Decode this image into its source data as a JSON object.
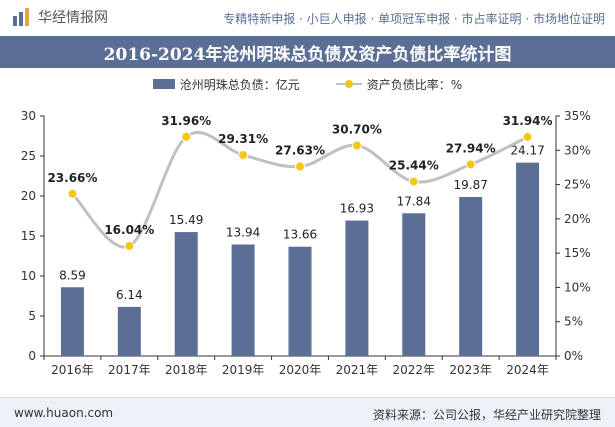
{
  "header": {
    "logo_text": "华经情报网",
    "tagline": "专精特新申报 · 小巨人申报 · 单项冠军申报 · 市占率证明 · 市场地位证明"
  },
  "footer": {
    "website": "www.huaon.com",
    "source": "资料来源：公司公报，华经产业研究院整理"
  },
  "chart_data": {
    "type": "bar+line",
    "title": "2016-2024年沧州明珠总负债及资产负债比率统计图",
    "categories": [
      "2016年",
      "2017年",
      "2018年",
      "2019年",
      "2020年",
      "2021年",
      "2022年",
      "2023年",
      "2024年"
    ],
    "series": [
      {
        "name": "沧州明珠总负债：亿元",
        "type": "bar",
        "axis": "left",
        "color": "#5a6e96",
        "values": [
          8.59,
          6.14,
          15.49,
          13.94,
          13.66,
          16.93,
          17.84,
          19.87,
          24.17
        ],
        "labels": [
          "8.59",
          "6.14",
          "15.49",
          "13.94",
          "13.66",
          "16.93",
          "17.84",
          "19.87",
          "24.17"
        ]
      },
      {
        "name": "资产负债比率：%",
        "type": "line",
        "axis": "right",
        "color": "#c0c0c0",
        "marker_color": "#f5c518",
        "values": [
          23.66,
          16.04,
          31.96,
          29.31,
          27.63,
          30.7,
          25.44,
          27.94,
          31.94
        ],
        "labels": [
          "23.66%",
          "16.04%",
          "31.96%",
          "29.31%",
          "27.63%",
          "30.70%",
          "25.44%",
          "27.94%",
          "31.94%"
        ]
      }
    ],
    "y_left": {
      "min": 0,
      "max": 30,
      "ticks": [
        0,
        5,
        10,
        15,
        20,
        25,
        30
      ],
      "tick_labels": [
        "0",
        "5",
        "10",
        "15",
        "20",
        "25",
        "30"
      ]
    },
    "y_right": {
      "min": 0,
      "max": 35,
      "ticks": [
        0,
        5,
        10,
        15,
        20,
        25,
        30,
        35
      ],
      "tick_labels": [
        "0%",
        "5%",
        "10%",
        "15%",
        "20%",
        "25%",
        "30%",
        "35%"
      ]
    },
    "grid": false,
    "legend_position": "top"
  }
}
